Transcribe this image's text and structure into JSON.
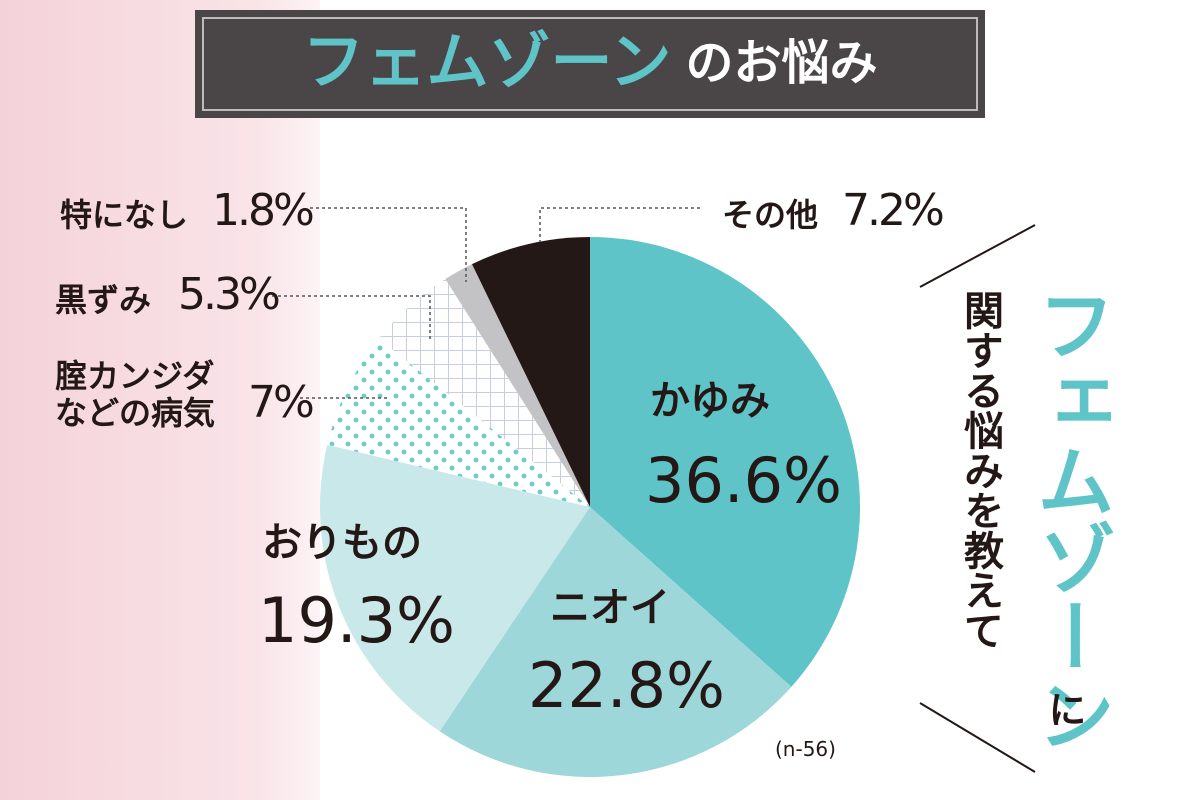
{
  "chart_data": {
    "type": "pie",
    "title": [
      "フェムゾーン",
      "のお悩み"
    ],
    "side_question": [
      "フェムゾーン",
      "に",
      "関する悩みを教えて"
    ],
    "categories": [
      "かゆみ",
      "ニオイ",
      "おりもの",
      "腟カンジダなどの病気",
      "黒ずみ",
      "特になし",
      "その他"
    ],
    "values": [
      36.6,
      22.8,
      19.3,
      7,
      5.3,
      1.8,
      7.2
    ],
    "value_labels": [
      "36.6%",
      "22.8%",
      "19.3%",
      "7%",
      "5.3%",
      "1.8%",
      "7.2%"
    ],
    "colors": [
      "#5ec4c8",
      "#9dd7da",
      "#c9e8ea",
      "#6ccbcf",
      "#c6cde6",
      "#c3c3c5",
      "#231815"
    ],
    "fill_style": [
      "solid",
      "solid",
      "solid",
      "dots",
      "grid",
      "solid",
      "solid"
    ],
    "note": "(n-56)"
  }
}
